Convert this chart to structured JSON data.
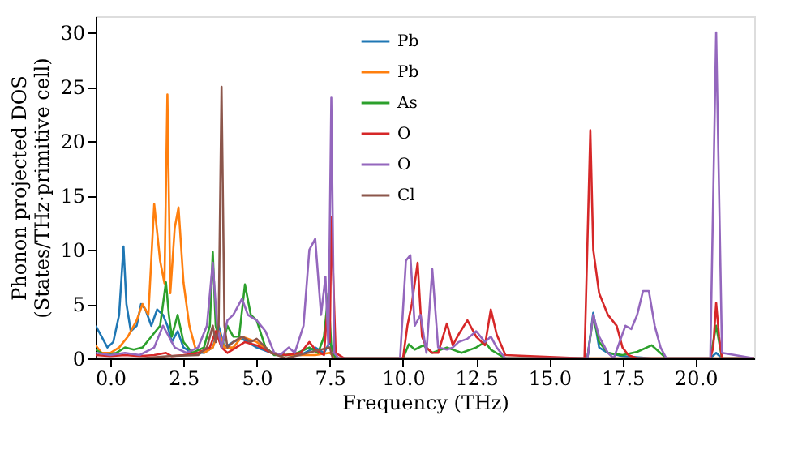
{
  "chart_data": {
    "type": "line",
    "xlabel": "Frequency (THz)",
    "ylabel": "Phonon projected DOS\n(States/THz·primitive cell)",
    "xlim": [
      -0.5,
      22
    ],
    "ylim": [
      0,
      31.5
    ],
    "xticks": [
      {
        "value": 0,
        "label": "0.0"
      },
      {
        "value": 2.5,
        "label": "2.5"
      },
      {
        "value": 5,
        "label": "5.0"
      },
      {
        "value": 7.5,
        "label": "7.5"
      },
      {
        "value": 10,
        "label": "10.0"
      },
      {
        "value": 12.5,
        "label": "12.5"
      },
      {
        "value": 15,
        "label": "15.0"
      },
      {
        "value": 17.5,
        "label": "17.5"
      },
      {
        "value": 20,
        "label": "20.0"
      }
    ],
    "yticks": [
      0,
      5,
      10,
      15,
      20,
      25,
      30
    ],
    "grid": false,
    "legend": "top",
    "line_style": "solid",
    "marker": "none",
    "series": [
      {
        "name": "Pb",
        "color": "#1f77b4",
        "x": [
          -0.5,
          -0.3,
          -0.1,
          0.1,
          0.3,
          0.45,
          0.55,
          0.7,
          0.9,
          1.05,
          1.2,
          1.4,
          1.6,
          1.8,
          1.95,
          2.1,
          2.3,
          2.5,
          2.8,
          3.2,
          3.5,
          3.7,
          3.9,
          4.2,
          4.5,
          5.0,
          5.5,
          6.0,
          6.5,
          7.0,
          7.3,
          7.5,
          7.7,
          8.0,
          10.0,
          16.3,
          16.5,
          16.7,
          17.0,
          17.5,
          18.5,
          20.5,
          20.7,
          20.9,
          22.0
        ],
        "values": [
          3,
          2,
          1,
          1.5,
          4,
          10.3,
          5,
          2.5,
          3,
          5,
          4.5,
          3,
          4.5,
          4,
          3,
          1.5,
          2.5,
          1,
          0.5,
          0.5,
          1,
          3,
          1,
          1.5,
          1.8,
          1,
          0.5,
          0.3,
          0.3,
          1,
          0.5,
          1.5,
          0,
          0,
          0,
          0,
          4.2,
          1,
          0.5,
          0.2,
          0,
          0,
          0.5,
          0,
          0
        ]
      },
      {
        "name": "Pb",
        "color": "#ff7f0e",
        "x": [
          -0.5,
          -0.3,
          0,
          0.3,
          0.6,
          0.9,
          1.1,
          1.3,
          1.5,
          1.7,
          1.85,
          1.95,
          2.05,
          2.2,
          2.33,
          2.5,
          2.7,
          2.9,
          3.2,
          3.5,
          3.7,
          3.9,
          4.2,
          4.5,
          5.0,
          5.5,
          6.0,
          7.0,
          7.5,
          7.7,
          8,
          22
        ],
        "values": [
          1.2,
          0.5,
          0.5,
          1,
          2,
          3.5,
          5,
          4,
          14.2,
          9,
          6.9,
          24.3,
          6,
          12,
          13.9,
          7,
          3,
          1,
          0.5,
          1,
          2.5,
          1,
          1,
          2,
          1.5,
          0.5,
          0.3,
          0.3,
          0.5,
          0,
          0,
          0
        ]
      },
      {
        "name": "As",
        "color": "#2ca02c",
        "x": [
          -0.5,
          -0.2,
          0.2,
          0.5,
          0.8,
          1.1,
          1.4,
          1.7,
          1.9,
          2.0,
          2.1,
          2.3,
          2.5,
          2.8,
          3.2,
          3.4,
          3.5,
          3.6,
          3.8,
          4.0,
          4.2,
          4.4,
          4.6,
          4.8,
          5.0,
          5.3,
          5.6,
          6.0,
          6.4,
          6.8,
          7.1,
          7.3,
          7.45,
          7.55,
          7.7,
          8.0,
          10.0,
          10.2,
          10.4,
          10.7,
          11.0,
          11.5,
          12.0,
          12.5,
          12.8,
          13.0,
          13.5,
          16.3,
          16.5,
          16.7,
          17.0,
          17.5,
          18.0,
          18.5,
          19.0,
          20.5,
          20.7,
          20.9,
          22
        ],
        "values": [
          0.8,
          0.3,
          0.5,
          1,
          0.8,
          1,
          2,
          3,
          7,
          4,
          2,
          4,
          1.5,
          0.5,
          1,
          3,
          9.8,
          3,
          1,
          3,
          2,
          2,
          6.8,
          4,
          3.5,
          1,
          0.3,
          0.3,
          0.5,
          1,
          0.5,
          2,
          6,
          1,
          0,
          0,
          0,
          1.3,
          0.8,
          1.2,
          0.5,
          1,
          0.5,
          1,
          1.5,
          0.8,
          0,
          0,
          3.9,
          1.5,
          0.5,
          0.3,
          0.6,
          1.2,
          0,
          0,
          3,
          0,
          0
        ]
      },
      {
        "name": "O",
        "color": "#d62728",
        "x": [
          -0.5,
          0,
          0.5,
          1,
          1.5,
          1.9,
          2.1,
          2.5,
          3.0,
          3.4,
          3.6,
          3.8,
          4.0,
          4.3,
          4.6,
          5.0,
          5.5,
          6.0,
          6.5,
          6.8,
          7.0,
          7.3,
          7.4,
          7.5,
          7.55,
          7.7,
          8.0,
          10.0,
          10.15,
          10.3,
          10.5,
          10.65,
          10.8,
          11.0,
          11.2,
          11.5,
          11.7,
          11.9,
          12.2,
          12.5,
          12.8,
          13.0,
          13.2,
          13.5,
          16.2,
          16.4,
          16.5,
          16.7,
          17.0,
          17.3,
          17.5,
          17.7,
          18.0,
          20.5,
          20.6,
          20.7,
          20.8,
          20.9,
          22
        ],
        "values": [
          0.3,
          0.2,
          0.3,
          0.2,
          0.3,
          0.5,
          0.2,
          0.3,
          0.5,
          1,
          2.5,
          1,
          0.5,
          1,
          1.5,
          1.2,
          0.5,
          0.3,
          0.5,
          1.5,
          0.8,
          0.3,
          4,
          1.5,
          13,
          0.5,
          0,
          0,
          3,
          5,
          8.8,
          2,
          1,
          0.5,
          0.5,
          3.2,
          1.2,
          2.2,
          3.5,
          2,
          1.2,
          4.5,
          2.2,
          0.3,
          0,
          21,
          10,
          6,
          4,
          3,
          1,
          0.3,
          0,
          0,
          1,
          5.1,
          2,
          0,
          0
        ]
      },
      {
        "name": "O",
        "color": "#9467bd",
        "x": [
          -0.5,
          0,
          0.5,
          1,
          1.5,
          1.8,
          2,
          2.2,
          2.6,
          3.0,
          3.3,
          3.5,
          3.65,
          3.8,
          4.0,
          4.2,
          4.5,
          4.7,
          5.0,
          5.3,
          5.6,
          5.8,
          6.1,
          6.3,
          6.6,
          6.8,
          7.0,
          7.2,
          7.35,
          7.45,
          7.55,
          7.65,
          7.8,
          8.0,
          9.9,
          10.1,
          10.25,
          10.4,
          10.6,
          10.8,
          11.0,
          11.2,
          11.5,
          11.7,
          11.9,
          12.2,
          12.5,
          12.8,
          13.0,
          13.2,
          13.5,
          16.3,
          16.5,
          16.7,
          17.0,
          17.2,
          17.4,
          17.6,
          17.8,
          18.0,
          18.2,
          18.4,
          18.6,
          18.8,
          19.0,
          20.5,
          20.7,
          20.9,
          22
        ],
        "values": [
          0.5,
          0.3,
          0.5,
          0.3,
          1,
          3,
          2,
          1,
          0.5,
          1,
          3,
          8.8,
          3,
          1,
          3.5,
          4,
          5.5,
          4,
          3.5,
          2.5,
          0.5,
          0.3,
          1,
          0.5,
          3,
          10,
          11,
          4,
          7.5,
          1,
          24,
          0.5,
          0,
          0,
          0,
          9,
          9.5,
          3,
          4,
          0.5,
          8.2,
          1,
          0.8,
          1,
          1.5,
          1.8,
          2.5,
          1.5,
          2,
          1,
          0,
          0,
          4,
          2,
          0.5,
          0,
          1.5,
          3,
          2.7,
          4,
          6.2,
          6.2,
          3,
          1,
          0,
          0,
          30,
          0.5,
          0
        ]
      },
      {
        "name": "Cl",
        "color": "#8c564b",
        "x": [
          -0.5,
          0,
          1,
          2,
          3,
          3.3,
          3.5,
          3.6,
          3.7,
          3.8,
          3.9,
          4.0,
          4.2,
          4.5,
          4.8,
          5.0,
          5.5,
          6,
          7.5,
          7.6,
          8,
          22
        ],
        "values": [
          0,
          0,
          0,
          0.2,
          0.3,
          1,
          3,
          1.5,
          3,
          25,
          3,
          1,
          1.5,
          2,
          1.5,
          1.8,
          0.5,
          0,
          1,
          0,
          0,
          0
        ]
      }
    ]
  }
}
